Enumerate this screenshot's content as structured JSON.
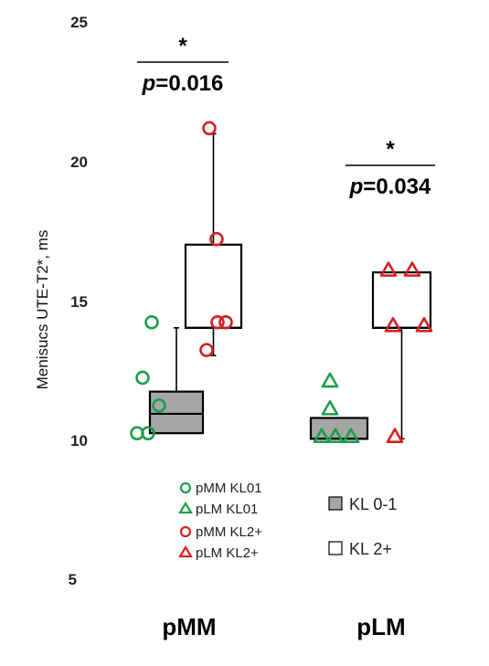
{
  "chart_data": {
    "type": "box",
    "ylabel": "Menisucs UTE-T2*, ms",
    "ylim": [
      5,
      25
    ],
    "yticks": [
      "5",
      "10",
      "15",
      "20",
      "25"
    ],
    "categories": [
      "pMM",
      "pLM"
    ],
    "series": [
      {
        "name": "KL 0-1",
        "color": "#a6a6a6"
      },
      {
        "name": "KL 2+",
        "color": "#ffffff"
      }
    ],
    "boxes": [
      {
        "category": "pMM",
        "series": "KL 0-1",
        "min": 10.2,
        "q1": 10.2,
        "median": 10.9,
        "q3": 11.7,
        "max": 14.0
      },
      {
        "category": "pMM",
        "series": "KL 2+",
        "min": 13.0,
        "q1": 14.0,
        "median": 14.0,
        "q3": 17.0,
        "max": 21.0
      },
      {
        "category": "pLM",
        "series": "KL 0-1",
        "min": 10.0,
        "q1": 10.0,
        "median": 10.0,
        "q3": 10.75,
        "max": 10.75
      },
      {
        "category": "pLM",
        "series": "KL 2+",
        "min": 10.0,
        "q1": 14.0,
        "median": 14.0,
        "q3": 16.0,
        "max": 16.0
      }
    ],
    "points": [
      {
        "group": "pMM KL01",
        "marker": "circle",
        "color": "#1a9e48",
        "values": [
          14.2,
          12.2,
          11.2,
          10.2,
          10.2
        ]
      },
      {
        "group": "pMM KL2+",
        "marker": "circle",
        "color": "#d42020",
        "values": [
          21.2,
          17.2,
          14.2,
          14.2,
          13.2
        ]
      },
      {
        "group": "pLM KL01",
        "marker": "triangle",
        "color": "#1a9e48",
        "values": [
          12.1,
          11.1,
          10.1,
          10.1,
          10.1
        ]
      },
      {
        "group": "pLM KL2+",
        "marker": "triangle",
        "color": "#d42020",
        "values": [
          16.1,
          16.1,
          14.1,
          14.1,
          10.1
        ]
      }
    ],
    "annotations": [
      {
        "category": "pMM",
        "star": "*",
        "p_label": "p",
        "p_value": "=0.016"
      },
      {
        "category": "pLM",
        "star": "*",
        "p_label": "p",
        "p_value": "=0.034"
      }
    ],
    "legend_markers": [
      "pMM KL01",
      "pLM KL01",
      "pMM KL2+",
      "pLM KL2+"
    ],
    "legend_boxes": [
      "KL 0-1",
      "KL 2+"
    ]
  }
}
